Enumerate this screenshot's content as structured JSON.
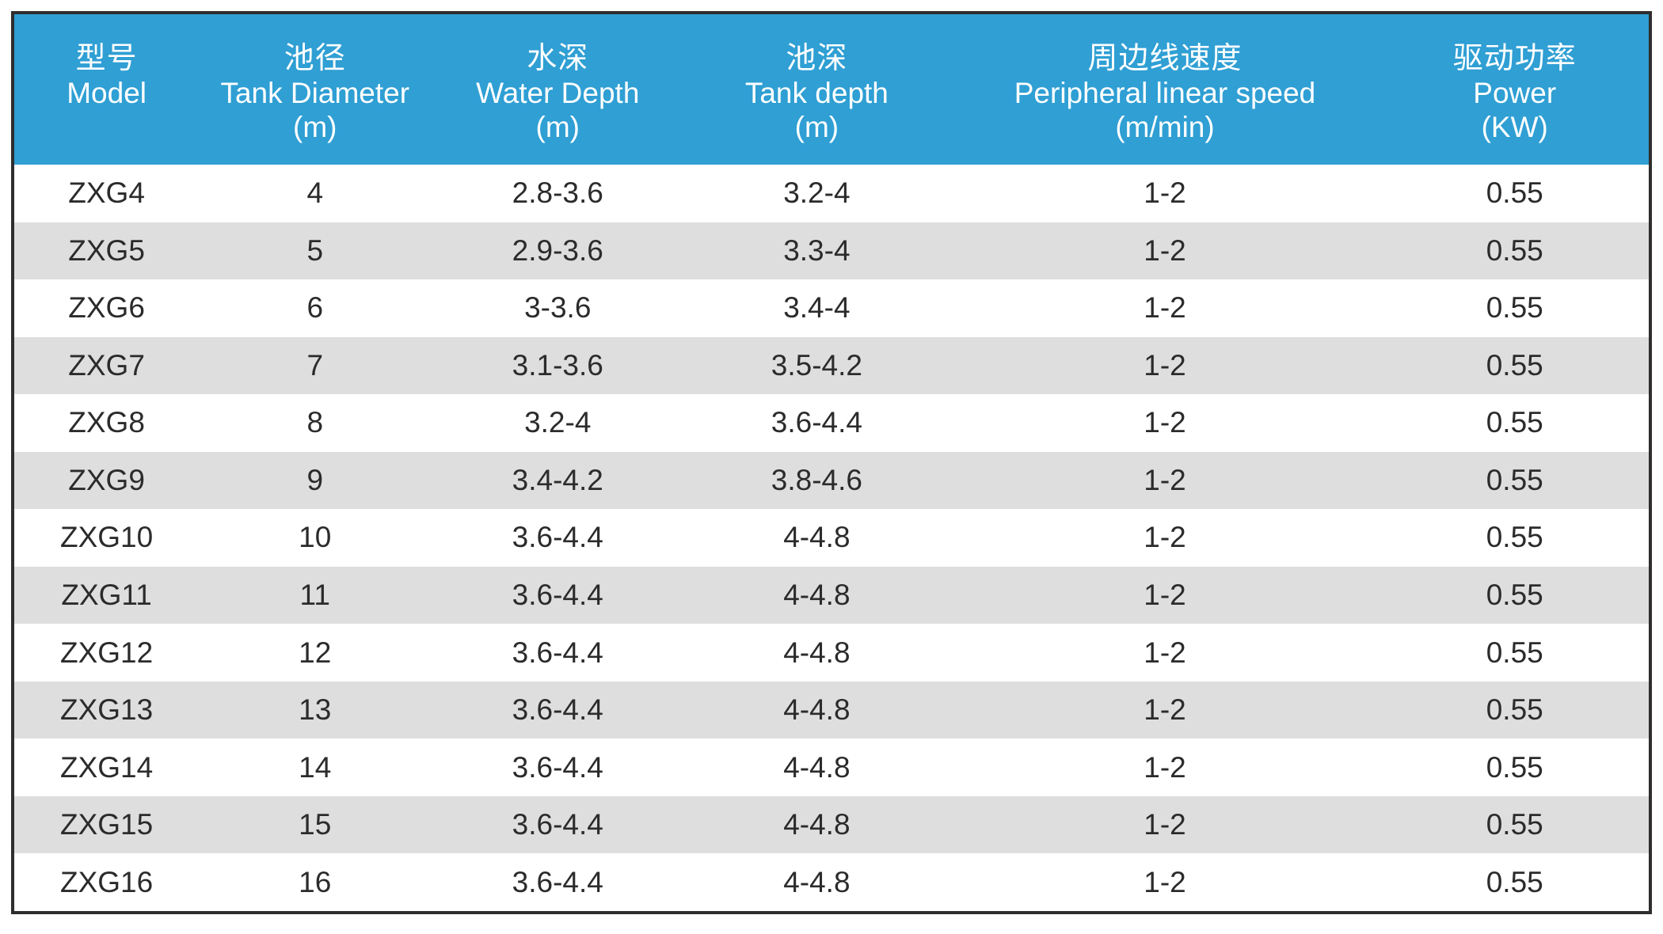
{
  "table": {
    "header": {
      "columns": [
        {
          "zh": "型号",
          "en": "Model",
          "unit": ""
        },
        {
          "zh": "池径",
          "en": "Tank Diameter",
          "unit": "(m)"
        },
        {
          "zh": "水深",
          "en": "Water Depth",
          "unit": "(m)"
        },
        {
          "zh": "池深",
          "en": "Tank depth",
          "unit": "(m)"
        },
        {
          "zh": "周边线速度",
          "en": "Peripheral linear speed",
          "unit": "(m/min)"
        },
        {
          "zh": "驱动功率",
          "en": "Power",
          "unit": "(KW)"
        }
      ]
    },
    "rows": [
      [
        "ZXG4",
        "4",
        "2.8-3.6",
        "3.2-4",
        "1-2",
        "0.55"
      ],
      [
        "ZXG5",
        "5",
        "2.9-3.6",
        "3.3-4",
        "1-2",
        "0.55"
      ],
      [
        "ZXG6",
        "6",
        "3-3.6",
        "3.4-4",
        "1-2",
        "0.55"
      ],
      [
        "ZXG7",
        "7",
        "3.1-3.6",
        "3.5-4.2",
        "1-2",
        "0.55"
      ],
      [
        "ZXG8",
        "8",
        "3.2-4",
        "3.6-4.4",
        "1-2",
        "0.55"
      ],
      [
        "ZXG9",
        "9",
        "3.4-4.2",
        "3.8-4.6",
        "1-2",
        "0.55"
      ],
      [
        "ZXG10",
        "10",
        "3.6-4.4",
        "4-4.8",
        "1-2",
        "0.55"
      ],
      [
        "ZXG11",
        "11",
        "3.6-4.4",
        "4-4.8",
        "1-2",
        "0.55"
      ],
      [
        "ZXG12",
        "12",
        "3.6-4.4",
        "4-4.8",
        "1-2",
        "0.55"
      ],
      [
        "ZXG13",
        "13",
        "3.6-4.4",
        "4-4.8",
        "1-2",
        "0.55"
      ],
      [
        "ZXG14",
        "14",
        "3.6-4.4",
        "4-4.8",
        "1-2",
        "0.55"
      ],
      [
        "ZXG15",
        "15",
        "3.6-4.4",
        "4-4.8",
        "1-2",
        "0.55"
      ],
      [
        "ZXG16",
        "16",
        "3.6-4.4",
        "4-4.8",
        "1-2",
        "0.55"
      ]
    ]
  },
  "colors": {
    "page_bg": "#ffffff",
    "header_bg": "#2f9fd4",
    "header_text": "#ffffff",
    "row_bg": "#ffffff",
    "row_alt_bg": "#dedede",
    "cell_text": "#2b2b2b",
    "frame_border": "#2e2e2e"
  }
}
